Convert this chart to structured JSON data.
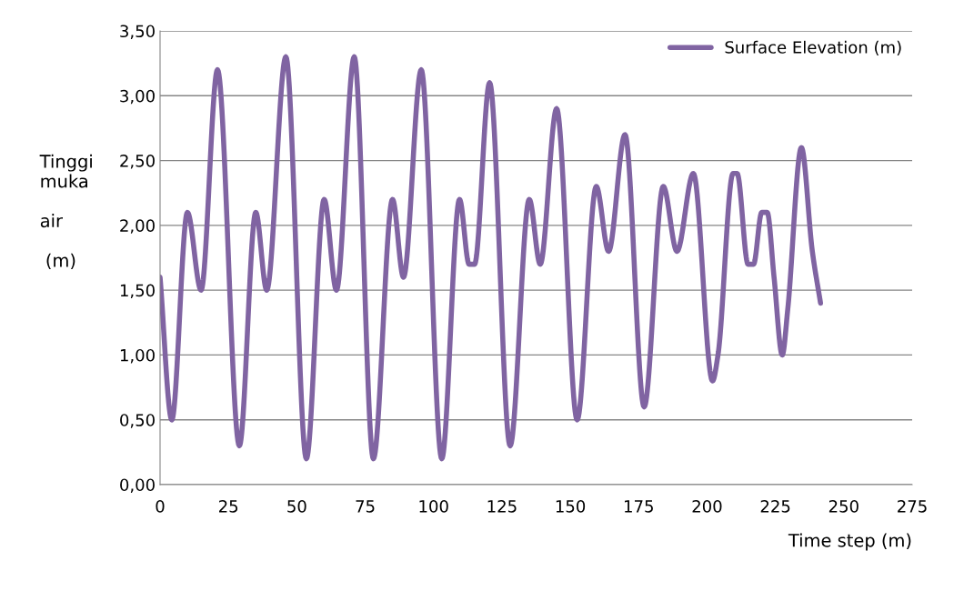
{
  "chart_data": {
    "type": "line",
    "xlabel": "Time step (m)",
    "ylabel": "Tinggi\nmuka\n\nair\n\n (m)",
    "x": [
      0,
      4.3,
      10,
      15,
      21,
      29,
      35,
      39,
      46,
      53.5,
      60,
      64.5,
      71,
      78,
      85,
      89,
      95.5,
      103,
      109.5,
      113,
      115,
      120.5,
      128,
      135,
      139,
      145,
      152.5,
      159.5,
      164,
      170,
      177,
      184,
      189,
      195,
      202,
      204,
      209.5,
      211,
      215,
      217,
      220,
      222,
      224.5,
      227.5,
      229.5,
      234.5,
      238.5,
      241.5
    ],
    "series": [
      {
        "name": "Surface Elevation (m)",
        "color": "#8064a2",
        "values": [
          1.6,
          0.5,
          2.1,
          1.5,
          3.2,
          0.3,
          2.1,
          1.5,
          3.3,
          0.2,
          2.2,
          1.5,
          3.3,
          0.2,
          2.2,
          1.6,
          3.2,
          0.2,
          2.2,
          1.7,
          1.7,
          3.1,
          0.3,
          2.2,
          1.7,
          2.9,
          0.5,
          2.3,
          1.8,
          2.7,
          0.6,
          2.3,
          1.8,
          2.4,
          0.8,
          1.0,
          2.4,
          2.4,
          1.7,
          1.7,
          2.1,
          2.1,
          1.6,
          1.0,
          1.35,
          2.6,
          1.8,
          1.4
        ]
      }
    ],
    "xlim": [
      0,
      275
    ],
    "xticks": [
      0,
      25,
      50,
      75,
      100,
      125,
      150,
      175,
      200,
      225,
      250,
      275
    ],
    "ylim": [
      0,
      3.5
    ],
    "yticks": [
      {
        "value": 0,
        "label": "0,00"
      },
      {
        "value": 0.5,
        "label": "0,50"
      },
      {
        "value": 1,
        "label": "1,00"
      },
      {
        "value": 1.5,
        "label": "1,50"
      },
      {
        "value": 2,
        "label": "2,00"
      },
      {
        "value": 2.5,
        "label": "2,50"
      },
      {
        "value": 3,
        "label": "3,00"
      },
      {
        "value": 3.5,
        "label": "3,50"
      }
    ],
    "grid": "y",
    "legend": "top right",
    "marker": "none",
    "line_style": "solid"
  }
}
